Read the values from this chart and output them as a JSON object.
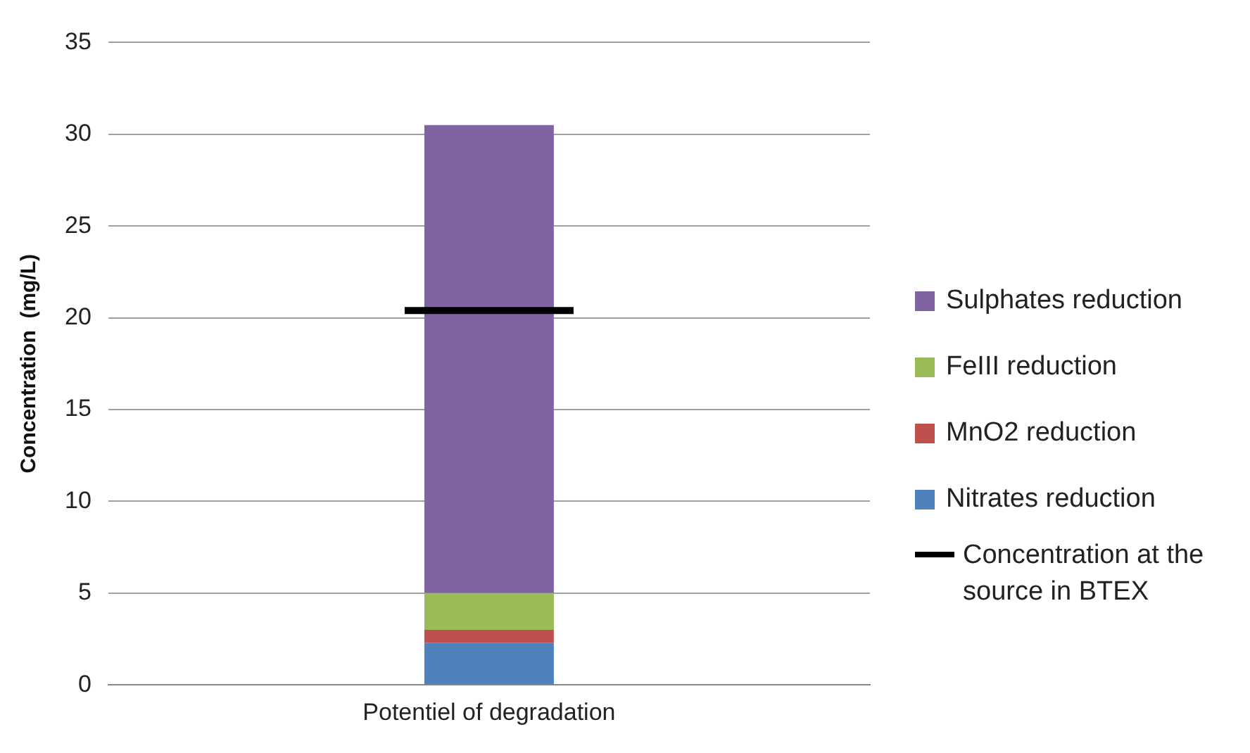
{
  "chart_data": {
    "type": "bar",
    "stacked": true,
    "categories": [
      "Potentiel of degradation"
    ],
    "ylabel": "Concentration  (mg/L)",
    "ylim": [
      0,
      35
    ],
    "yticks": [
      0,
      5,
      10,
      15,
      20,
      25,
      30,
      35
    ],
    "grid": "y",
    "legend": "right",
    "series": [
      {
        "name": "Nitrates reduction",
        "color": "#4f81bd",
        "values": [
          2.3
        ]
      },
      {
        "name": "MnO2 reduction",
        "color": "#c0504d",
        "values": [
          0.7
        ]
      },
      {
        "name": "FeIII reduction",
        "color": "#9bbb59",
        "values": [
          2.0
        ]
      },
      {
        "name": "Sulphates reduction",
        "color": "#8064a2",
        "values": [
          25.5
        ]
      }
    ],
    "ref_lines": [
      {
        "axis": "y",
        "value": 20.4,
        "label": "Concentration at the source in BTEX",
        "color": "#000000"
      }
    ]
  }
}
